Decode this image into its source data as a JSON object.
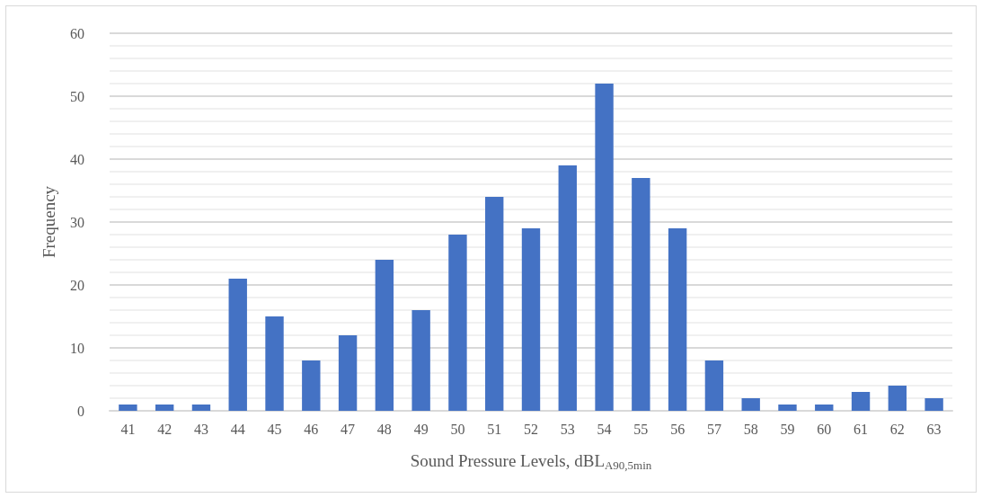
{
  "chart_data": {
    "type": "bar",
    "xlabel": "Sound Pressure Levels, dBL$_{A90,5min}$",
    "ylabel": "Frequency",
    "categories": [
      "41",
      "42",
      "43",
      "44",
      "45",
      "46",
      "47",
      "48",
      "49",
      "50",
      "51",
      "52",
      "53",
      "54",
      "55",
      "56",
      "57",
      "58",
      "59",
      "60",
      "61",
      "62",
      "63"
    ],
    "values": [
      1,
      1,
      1,
      21,
      15,
      8,
      12,
      24,
      16,
      28,
      34,
      29,
      39,
      52,
      37,
      29,
      8,
      2,
      1,
      1,
      3,
      4,
      2
    ],
    "color": "#4472c4",
    "ylim": [
      0,
      60
    ],
    "yticks": [
      0,
      10,
      20,
      30,
      40,
      50,
      60
    ],
    "grid": "y"
  }
}
